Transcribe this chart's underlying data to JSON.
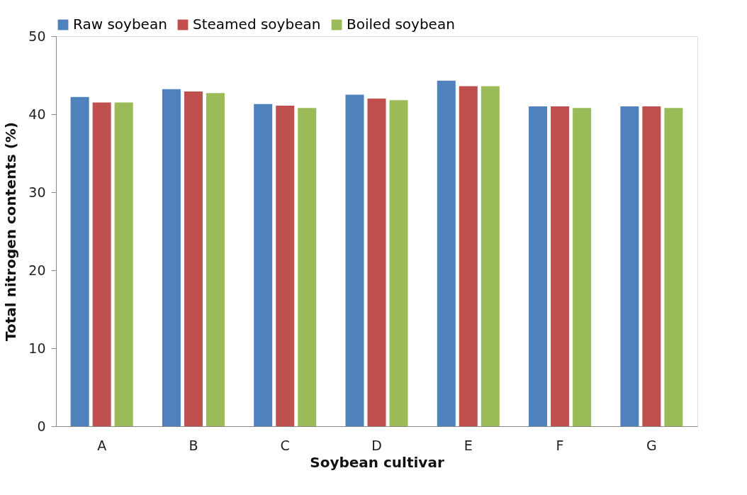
{
  "chart_data": {
    "type": "bar",
    "xlabel": "Soybean cultivar",
    "ylabel": "Total nitrogen contents (%)",
    "categories": [
      "A",
      "B",
      "C",
      "D",
      "E",
      "F",
      "G"
    ],
    "series": [
      {
        "name": "Raw soybean",
        "color": "#4f81bd",
        "values": [
          42.2,
          43.2,
          41.3,
          42.5,
          44.3,
          41.0,
          41.0
        ]
      },
      {
        "name": "Steamed soybean",
        "color": "#c0504d",
        "values": [
          41.5,
          42.9,
          41.1,
          42.0,
          43.6,
          41.0,
          41.0
        ]
      },
      {
        "name": "Boiled soybean",
        "color": "#9bbb59",
        "values": [
          41.5,
          42.7,
          40.8,
          41.8,
          43.6,
          40.8,
          40.8
        ]
      }
    ],
    "ylim": [
      0,
      50
    ],
    "yticks": [
      0,
      10,
      20,
      30,
      40,
      50
    ],
    "grid": false,
    "legend": "top"
  }
}
